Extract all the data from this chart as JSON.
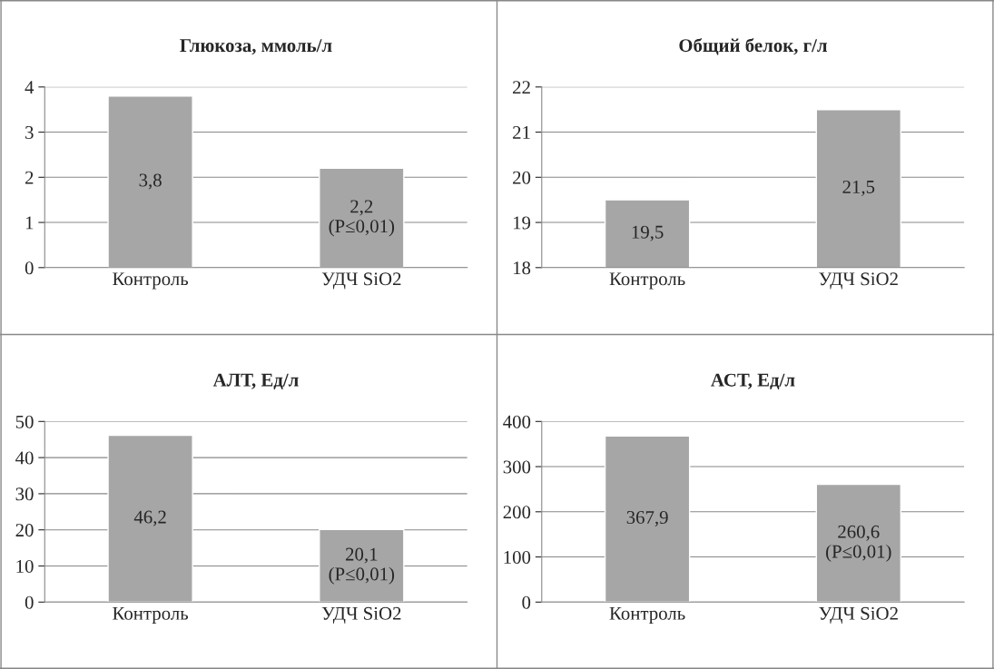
{
  "chart_data": [
    {
      "type": "bar",
      "title": "Глюкоза, ммоль/л",
      "categories": [
        "Контроль",
        "УДЧ SiO2"
      ],
      "values": [
        3.8,
        2.2
      ],
      "value_labels": [
        "3,8",
        "2,2\n(P≤0,01)"
      ],
      "color": "#a6a6a6",
      "ylim": [
        0,
        4
      ],
      "yticks": [
        0,
        1,
        2,
        3,
        4
      ],
      "grid": "y",
      "legend": false
    },
    {
      "type": "bar",
      "title": "Общий белок, г/л",
      "categories": [
        "Контроль",
        "УДЧ SiO2"
      ],
      "values": [
        19.5,
        21.5
      ],
      "value_labels": [
        "19,5",
        "21,5"
      ],
      "color": "#a6a6a6",
      "ylim": [
        18,
        22
      ],
      "yticks": [
        18,
        19,
        20,
        21,
        22
      ],
      "grid": "y",
      "legend": false
    },
    {
      "type": "bar",
      "title": "АЛТ, Ед/л",
      "categories": [
        "Контроль",
        "УДЧ SiO2"
      ],
      "values": [
        46.2,
        20.1
      ],
      "value_labels": [
        "46,2",
        "20,1\n(P≤0,01)"
      ],
      "color": "#a6a6a6",
      "ylim": [
        0,
        50
      ],
      "yticks": [
        0,
        10,
        20,
        30,
        40,
        50
      ],
      "grid": "y",
      "legend": false
    },
    {
      "type": "bar",
      "title": "АСТ, Ед/л",
      "categories": [
        "Контроль",
        "УДЧ SiO2"
      ],
      "values": [
        367.9,
        260.6
      ],
      "value_labels": [
        "367,9",
        "260,6\n(P≤0,01)"
      ],
      "color": "#a6a6a6",
      "ylim": [
        0,
        400
      ],
      "yticks": [
        0,
        100,
        200,
        300,
        400
      ],
      "grid": "y",
      "legend": false
    }
  ]
}
